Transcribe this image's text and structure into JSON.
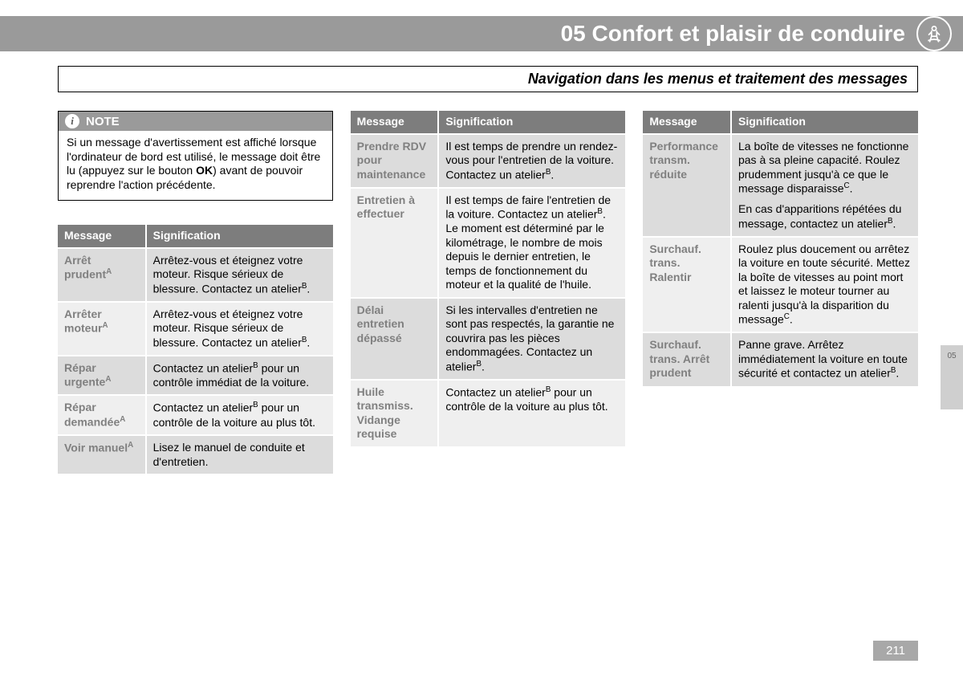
{
  "header": {
    "chapter_title": "05 Confort et plaisir de conduire",
    "subtitle": "Navigation dans les menus et traitement des messages"
  },
  "note": {
    "label": "NOTE",
    "body_before": "Si un message d'avertissement est affiché lorsque l'ordinateur de bord est utilisé, le message doit être lu (appuyez sur le bouton ",
    "body_bold": "OK",
    "body_after": ") avant de pouvoir reprendre l'action précédente."
  },
  "table_headers": {
    "message": "Message",
    "signification": "Signification"
  },
  "col1_rows": [
    {
      "msg": "Arrêt prudent",
      "sup": "A",
      "sig": "Arrêtez-vous et éteignez votre moteur. Risque sérieux de blessure. Contactez un atelier",
      "sigsup": "B",
      "sigafter": "."
    },
    {
      "msg": "Arrêter moteur",
      "sup": "A",
      "sig": "Arrêtez-vous et éteignez votre moteur. Risque sérieux de blessure. Contactez un atelier",
      "sigsup": "B",
      "sigafter": "."
    },
    {
      "msg": "Répar urgente",
      "sup": "A",
      "sig": "Contactez un atelier",
      "sigsup": "B",
      "sigafter": " pour un contrôle immédiat de la voiture."
    },
    {
      "msg": "Répar demandée",
      "sup": "A",
      "sig": "Contactez un atelier",
      "sigsup": "B",
      "sigafter": " pour un contrôle de la voiture au plus tôt."
    },
    {
      "msg": "Voir manuel",
      "sup": "A",
      "sig": "Lisez le manuel de conduite et d'entretien.",
      "sigsup": "",
      "sigafter": ""
    }
  ],
  "col2_rows": [
    {
      "msg": "Prendre RDV pour maintenance",
      "sup": "",
      "sig": "Il est temps de prendre un rendez-vous pour l'entretien de la voiture. Contactez un atelier",
      "sigsup": "B",
      "sigafter": "."
    },
    {
      "msg": "Entretien à effectuer",
      "sup": "",
      "sig": "Il est temps de faire l'entretien de la voiture. Contactez un atelier",
      "sigsup": "B",
      "sigafter": ". Le moment est déterminé par le kilométrage, le nombre de mois depuis le dernier entretien, le temps de fonctionnement du moteur et la qualité de l'huile."
    },
    {
      "msg": "Délai entretien dépassé",
      "sup": "",
      "sig": "Si les intervalles d'entretien ne sont pas respectés, la garantie ne couvrira pas les pièces endommagées. Contactez un atelier",
      "sigsup": "B",
      "sigafter": "."
    },
    {
      "msg": "Huile transmiss. Vidange requise",
      "sup": "",
      "sig": "Contactez un atelier",
      "sigsup": "B",
      "sigafter": " pour un contrôle de la voiture au plus tôt."
    }
  ],
  "col3_rows": [
    {
      "msg": "Performance transm. réduite",
      "sup": "",
      "sig_parts": [
        {
          "text": "La boîte de vitesses ne fonctionne pas à sa pleine capacité. Roulez prudemment jusqu'à ce que le message disparaisse",
          "sup": "C",
          "after": "."
        },
        {
          "text": "En cas d'apparitions répétées du message, contactez un atelier",
          "sup": "B",
          "after": "."
        }
      ]
    },
    {
      "msg": "Surchauf. trans. Ralentir",
      "sup": "",
      "sig_parts": [
        {
          "text": "Roulez plus doucement ou arrêtez la voiture en toute sécurité. Mettez la boîte de vitesses au point mort et laissez le moteur tourner au ralenti jusqu'à la disparition du message",
          "sup": "C",
          "after": "."
        }
      ]
    },
    {
      "msg": "Surchauf. trans. Arrêt prudent",
      "sup": "",
      "sig_parts": [
        {
          "text": "Panne grave. Arrêtez immédiatement la voiture en toute sécurité et contactez un atelier",
          "sup": "B",
          "after": "."
        }
      ]
    }
  ],
  "side_tab": "05",
  "page_number": "211",
  "colors": {
    "header_bg": "#9a9a9a",
    "th_bg": "#7d7d7d",
    "row_odd": "#dcdcdc",
    "row_even": "#efefef",
    "msg_text": "#808080"
  }
}
